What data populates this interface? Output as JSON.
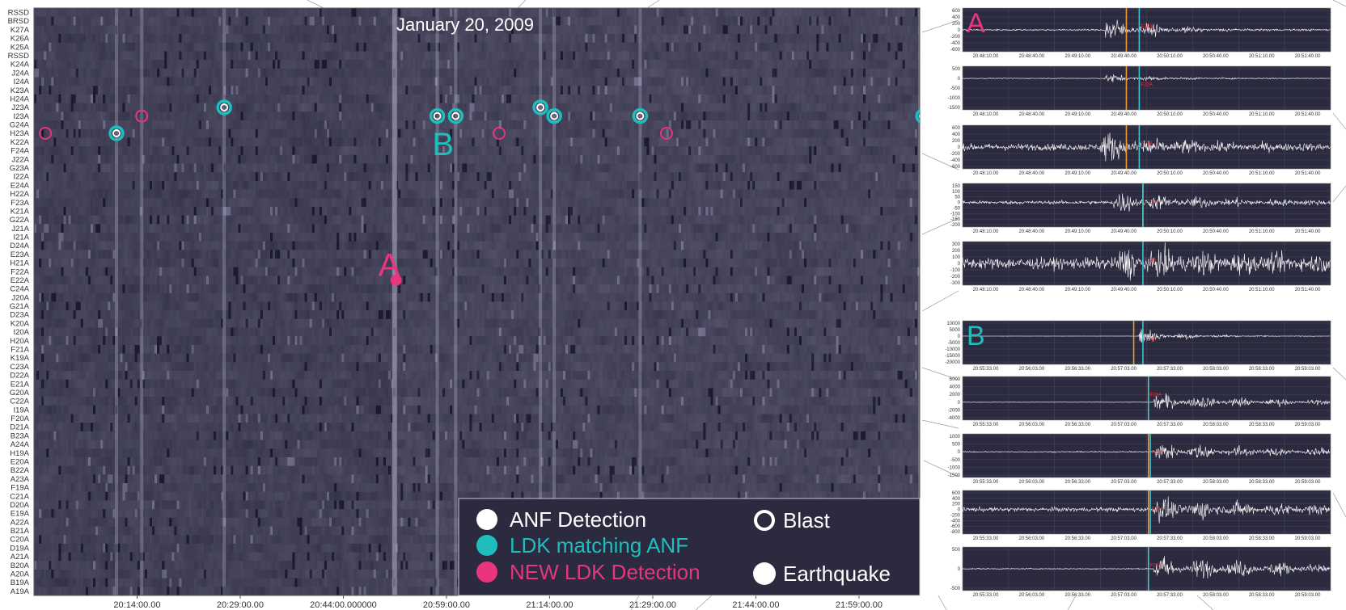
{
  "title": "January 20, 2009",
  "colors": {
    "background": "#2b2a3f",
    "anf": "#ffffff",
    "ldk_matching": "#1fbdbd",
    "new_ldk": "#e8357e",
    "orange_line": "#f29a2a",
    "blue_line": "#3cc3d0"
  },
  "chart_data": [
    {
      "type": "heatmap",
      "title": "January 20, 2009",
      "xlabel": "",
      "ylabel": "",
      "x_tick_labels": [
        "20:14:00.00",
        "20:29:00.00",
        "20:44:00.000000",
        "20:59:00.00",
        "21:14:00.00",
        "21:29:00.00",
        "21:44:00.00",
        "21:59:00.00"
      ],
      "stations": [
        "RSSD",
        "BRSD",
        "K27A",
        "K26A",
        "K25A",
        "RSSD",
        "K24A",
        "J24A",
        "I24A",
        "K23A",
        "H24A",
        "J23A",
        "I23A",
        "G24A",
        "H23A",
        "K22A",
        "F24A",
        "J22A",
        "G23A",
        "I22A",
        "E24A",
        "H22A",
        "F23A",
        "K21A",
        "G22A",
        "J21A",
        "I21A",
        "D24A",
        "E23A",
        "H21A",
        "F22A",
        "E22A",
        "C24A",
        "J20A",
        "G21A",
        "D23A",
        "K20A",
        "I20A",
        "H20A",
        "F21A",
        "K19A",
        "C23A",
        "D22A",
        "E21A",
        "G20A",
        "C22A",
        "I19A",
        "F20A",
        "D21A",
        "B23A",
        "A24A",
        "H19A",
        "E20A",
        "B22A",
        "A23A",
        "F19A",
        "C21A",
        "D20A",
        "E19A",
        "A22A",
        "B21A",
        "C20A",
        "D19A",
        "A21A",
        "B20A",
        "A20A",
        "B19A",
        "A19A"
      ],
      "markers": [
        {
          "kind": "new_ldk",
          "style": "ring",
          "time": "20:00:40",
          "station": "H23A"
        },
        {
          "kind": "ldk_matching",
          "style": "ring",
          "time": "20:11:00",
          "station": "H23A"
        },
        {
          "kind": "new_ldk",
          "style": "ring",
          "time": "20:14:40",
          "station": "I23A"
        },
        {
          "kind": "ldk_matching",
          "style": "ring",
          "time": "20:26:40",
          "station": "J23A"
        },
        {
          "kind": "ldk_matching",
          "style": "ring",
          "time": "20:57:40",
          "station": "I23A"
        },
        {
          "kind": "ldk_matching",
          "style": "ring",
          "time": "21:00:20",
          "station": "I23A"
        },
        {
          "kind": "new_ldk",
          "style": "ring",
          "time": "21:06:40",
          "station": "H23A"
        },
        {
          "kind": "ldk_matching",
          "style": "ring",
          "time": "21:12:40",
          "station": "J23A"
        },
        {
          "kind": "ldk_matching",
          "style": "ring",
          "time": "21:14:40",
          "station": "I23A"
        },
        {
          "kind": "ldk_matching",
          "style": "ring",
          "time": "21:27:10",
          "station": "I23A"
        },
        {
          "kind": "new_ldk",
          "style": "ring",
          "time": "21:31:00",
          "station": "H23A"
        },
        {
          "kind": "ldk_matching",
          "style": "ring",
          "time": "22:08:20",
          "station": "I23A"
        },
        {
          "kind": "new_ldk",
          "style": "dot",
          "time": "20:51:40",
          "station": "E22A"
        }
      ],
      "annotations": [
        {
          "label": "A",
          "time": "20:50:40",
          "station": "F22A",
          "color": "new_ldk"
        },
        {
          "label": "B",
          "time": "20:58:30",
          "station": "F24A",
          "color": "ldk_matching"
        }
      ],
      "legend": {
        "placement": "bottom-right",
        "items": [
          {
            "label": "ANF Detection",
            "swatch": "anf"
          },
          {
            "label": "LDK matching ANF",
            "swatch": "ldk_matching"
          },
          {
            "label": "NEW LDK Detection",
            "swatch": "new_ldk"
          },
          {
            "label": "Blast",
            "swatch": "blast"
          },
          {
            "label": "Earthquake",
            "swatch": "earthquake"
          }
        ]
      }
    },
    {
      "type": "line",
      "group": "A",
      "x_tick_labels": [
        "20:48:10.00",
        "20:48:40.00",
        "20:49:10.00",
        "20:49:40.00",
        "20:50:10.00",
        "20:50:40.00",
        "20:51:10.00",
        "20:51:40.00"
      ],
      "orange_marker_time": "20:49:40.00",
      "blue_marker_time": "20:49:40.00",
      "panels": [
        {
          "station": "E22A",
          "yticks": [
            600,
            400,
            200,
            0,
            -200,
            -400,
            -600
          ],
          "onset": 0.385,
          "decay": 0.13,
          "peak": 0.9,
          "noise": 0.05
        },
        {
          "station": "F22A",
          "yticks": [
            500,
            0,
            -500,
            -1000,
            -1500
          ],
          "onset": 0.385,
          "decay": 0.16,
          "peak": 0.55,
          "noise": 0.04
        },
        {
          "station": "E23A",
          "yticks": [
            600,
            400,
            200,
            0,
            -200,
            -400,
            -600
          ],
          "onset": 0.375,
          "decay": 0.2,
          "peak": 0.85,
          "noise": 0.2
        },
        {
          "station": "F22A",
          "yticks": [
            150,
            100,
            50,
            0,
            -50,
            -100,
            -150,
            -200
          ],
          "onset": 0.41,
          "decay": 0.3,
          "peak": 0.7,
          "noise": 0.12
        },
        {
          "station": "F24A",
          "yticks": [
            300,
            200,
            100,
            0,
            -100,
            -200,
            -300
          ],
          "onset": 0.42,
          "decay": 0.5,
          "peak": 0.7,
          "noise": 0.35
        }
      ]
    },
    {
      "type": "line",
      "group": "B",
      "x_tick_labels": [
        "20:55:33.00",
        "20:56:03.00",
        "20:56:33.00",
        "20:57:03.00",
        "20:57:33.00",
        "20:58:03.00",
        "20:58:33.00",
        "20:59:03.00"
      ],
      "orange_marker_time": "20:57:03.00",
      "blue_marker_time": "20:57:03.00",
      "panels": [
        {
          "station": "F24A",
          "yticks": [
            10000,
            5000,
            0,
            -5000,
            -10000,
            -15000,
            -20000
          ],
          "onset": 0.48,
          "decay": 0.12,
          "peak": 0.9,
          "noise": 0.01
        },
        {
          "station": "F24A",
          "yticks": [
            6000,
            4000,
            2000,
            0,
            -2000,
            -4000
          ],
          "onset": 0.52,
          "decay": 0.35,
          "peak": 0.7,
          "noise": 0.02
        },
        {
          "station": "F24A",
          "yticks": [
            1000,
            500,
            0,
            -500,
            -1000,
            -1500
          ],
          "onset": 0.52,
          "decay": 0.45,
          "peak": 0.75,
          "noise": 0.04
        },
        {
          "station": "F24A",
          "yticks": [
            600,
            400,
            200,
            0,
            -200,
            -400,
            -600,
            -800
          ],
          "onset": 0.52,
          "decay": 0.4,
          "peak": 0.8,
          "noise": 0.15
        },
        {
          "station": "F24A",
          "yticks": [
            500,
            0,
            -500
          ],
          "onset": 0.52,
          "decay": 0.6,
          "peak": 0.8,
          "noise": 0.03
        }
      ]
    }
  ]
}
